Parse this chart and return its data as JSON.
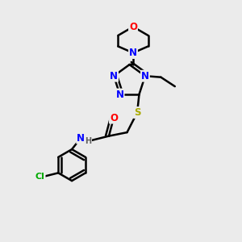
{
  "background_color": "#ebebeb",
  "atom_colors": {
    "N": "#0000ff",
    "O": "#ff0000",
    "S": "#aaaa00",
    "C": "#000000",
    "H": "#606060",
    "Cl": "#00aa00"
  },
  "bond_color": "#000000",
  "bond_width": 1.8,
  "font_size_atom": 8.5,
  "title": ""
}
